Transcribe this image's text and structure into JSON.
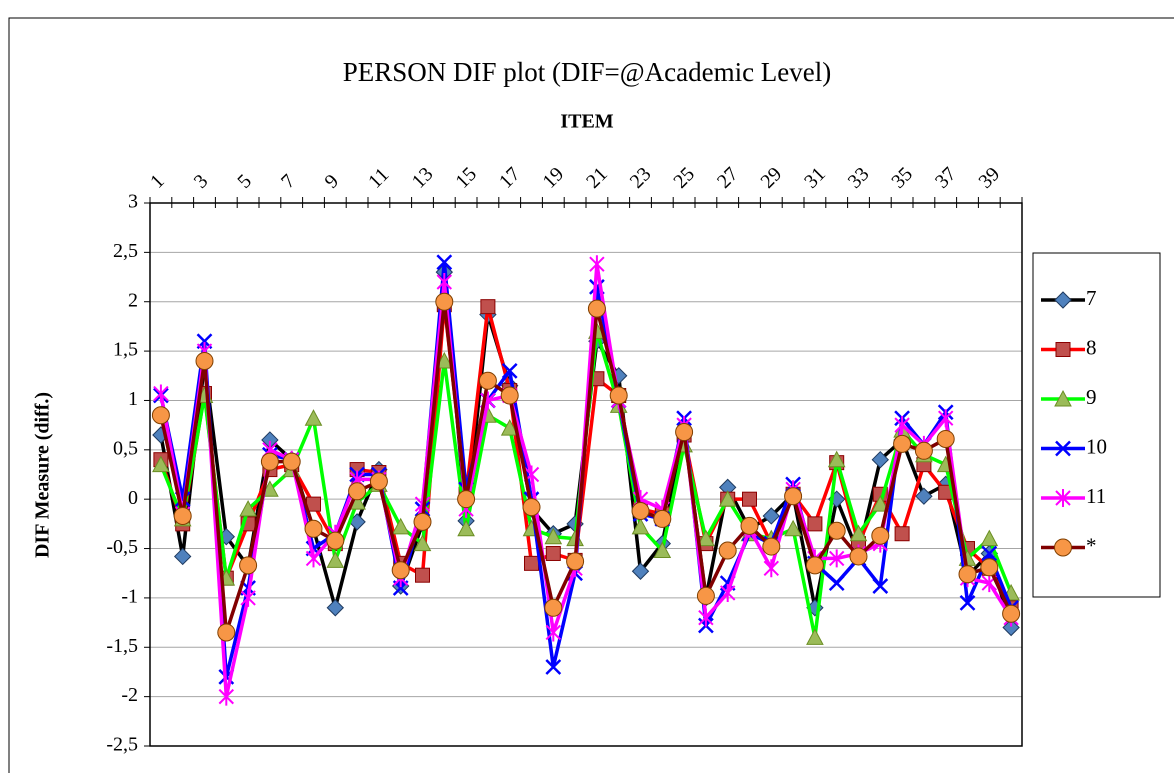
{
  "chart_data": {
    "type": "line",
    "title": "PERSON DIF plot (DIF=@Academic Level)",
    "x_label": "ITEM",
    "y_label": "DIF Measure (diff.)",
    "categories": [
      "1",
      null,
      "3",
      null,
      "5",
      null,
      "7",
      null,
      "9",
      null,
      "11",
      null,
      "13",
      null,
      "15",
      null,
      "17",
      null,
      "19",
      null,
      "21",
      null,
      "23",
      null,
      "25",
      null,
      "27",
      null,
      "29",
      null,
      "31",
      null,
      "33",
      null,
      "35",
      null,
      "37",
      null,
      "39",
      null
    ],
    "ylim": [
      -2.5,
      3
    ],
    "yticks": [
      3,
      {
        "value": 2.5,
        "label": "2,5"
      },
      2,
      {
        "value": 1.5,
        "label": "1,5"
      },
      1,
      {
        "value": 0.5,
        "label": "0,5"
      },
      0,
      {
        "value": -0.5,
        "label": "-0,5"
      },
      -1,
      {
        "value": -1.5,
        "label": "-1,5"
      },
      -2,
      {
        "value": -2.5,
        "label": "-2,5"
      }
    ],
    "grid": true,
    "legend": "right",
    "series": [
      {
        "name": "7",
        "color": "#000000",
        "marker": "diamond",
        "marker_color": "#4f81bd",
        "values": [
          0.65,
          -0.58,
          1.38,
          -0.38,
          -0.68,
          0.6,
          0.4,
          -0.3,
          -1.1,
          -0.23,
          0.3,
          -0.88,
          -0.25,
          2.3,
          -0.22,
          1.87,
          1.15,
          -0.1,
          -0.35,
          -0.25,
          1.6,
          1.25,
          -0.73,
          -0.45,
          0.7,
          -1.0,
          0.12,
          -0.3,
          -0.17,
          0.05,
          -1.1,
          0.0,
          -0.55,
          0.4,
          0.6,
          0.03,
          0.15,
          -0.78,
          -0.55,
          -1.3
        ]
      },
      {
        "name": "8",
        "color": "#ff0000",
        "marker": "square",
        "marker_color": "#c0504d",
        "values": [
          0.4,
          -0.25,
          1.07,
          -0.8,
          -0.25,
          0.3,
          0.35,
          -0.05,
          -0.45,
          0.3,
          0.27,
          -0.65,
          -0.77,
          1.97,
          0.05,
          1.95,
          1.1,
          -0.65,
          -0.55,
          -0.62,
          1.22,
          1.05,
          -0.1,
          -0.15,
          0.65,
          -0.45,
          0.0,
          0.0,
          -0.45,
          0.05,
          -0.25,
          0.37,
          -0.45,
          0.05,
          -0.35,
          0.35,
          0.07,
          -0.5,
          -0.7,
          -1.1
        ]
      },
      {
        "name": "9",
        "color": "#00ff00",
        "marker": "triangle",
        "marker_color": "#9bbb59",
        "values": [
          0.35,
          -0.2,
          1.05,
          -0.8,
          -0.1,
          0.1,
          0.3,
          0.82,
          -0.62,
          -0.03,
          0.15,
          -0.28,
          -0.45,
          1.4,
          -0.3,
          0.85,
          0.72,
          -0.3,
          -0.38,
          -0.4,
          1.7,
          0.95,
          -0.28,
          -0.52,
          0.55,
          -0.4,
          0.0,
          -0.35,
          -0.4,
          -0.3,
          -1.4,
          0.4,
          -0.35,
          -0.05,
          0.7,
          0.45,
          0.35,
          -0.6,
          -0.4,
          -0.95
        ]
      },
      {
        "name": "10",
        "color": "#0000ff",
        "marker": "x",
        "marker_color": "#0000ff",
        "values": [
          1.05,
          0.0,
          1.6,
          -1.8,
          -0.9,
          0.45,
          0.4,
          -0.5,
          -0.35,
          0.25,
          0.25,
          -0.9,
          -0.1,
          2.4,
          0.1,
          1.0,
          1.3,
          0.0,
          -1.7,
          -0.75,
          2.15,
          1.0,
          -0.15,
          -0.2,
          0.82,
          -1.28,
          -0.85,
          -0.35,
          -0.45,
          0.15,
          -0.65,
          -0.85,
          -0.6,
          -0.88,
          0.82,
          0.55,
          0.88,
          -1.05,
          -0.55,
          -1.1
        ]
      },
      {
        "name": "11",
        "color": "#ff00ff",
        "marker": "star",
        "marker_color": "#ff00ff",
        "values": [
          1.07,
          -0.15,
          1.5,
          -2.0,
          -1.0,
          0.5,
          0.4,
          -0.6,
          -0.35,
          0.2,
          0.2,
          -0.8,
          -0.05,
          2.2,
          -0.1,
          1.0,
          1.05,
          0.25,
          -1.35,
          -0.7,
          2.38,
          1.0,
          0.0,
          -0.1,
          0.75,
          -1.2,
          -0.95,
          -0.3,
          -0.7,
          0.1,
          -0.6,
          -0.6,
          -0.55,
          -0.45,
          0.75,
          0.55,
          0.82,
          -0.8,
          -0.85,
          -1.2
        ]
      },
      {
        "name": "*",
        "color": "#800000",
        "marker": "circle",
        "marker_color": "#f79646",
        "values": [
          0.85,
          -0.17,
          1.4,
          -1.35,
          -0.67,
          0.38,
          0.38,
          -0.3,
          -0.42,
          0.08,
          0.18,
          -0.72,
          -0.23,
          2.0,
          0.0,
          1.2,
          1.05,
          -0.08,
          -1.1,
          -0.63,
          1.93,
          1.05,
          -0.12,
          -0.2,
          0.68,
          -0.98,
          -0.52,
          -0.27,
          -0.48,
          0.03,
          -0.67,
          -0.32,
          -0.58,
          -0.37,
          0.56,
          0.49,
          0.61,
          -0.76,
          -0.69,
          -1.16
        ]
      }
    ]
  }
}
